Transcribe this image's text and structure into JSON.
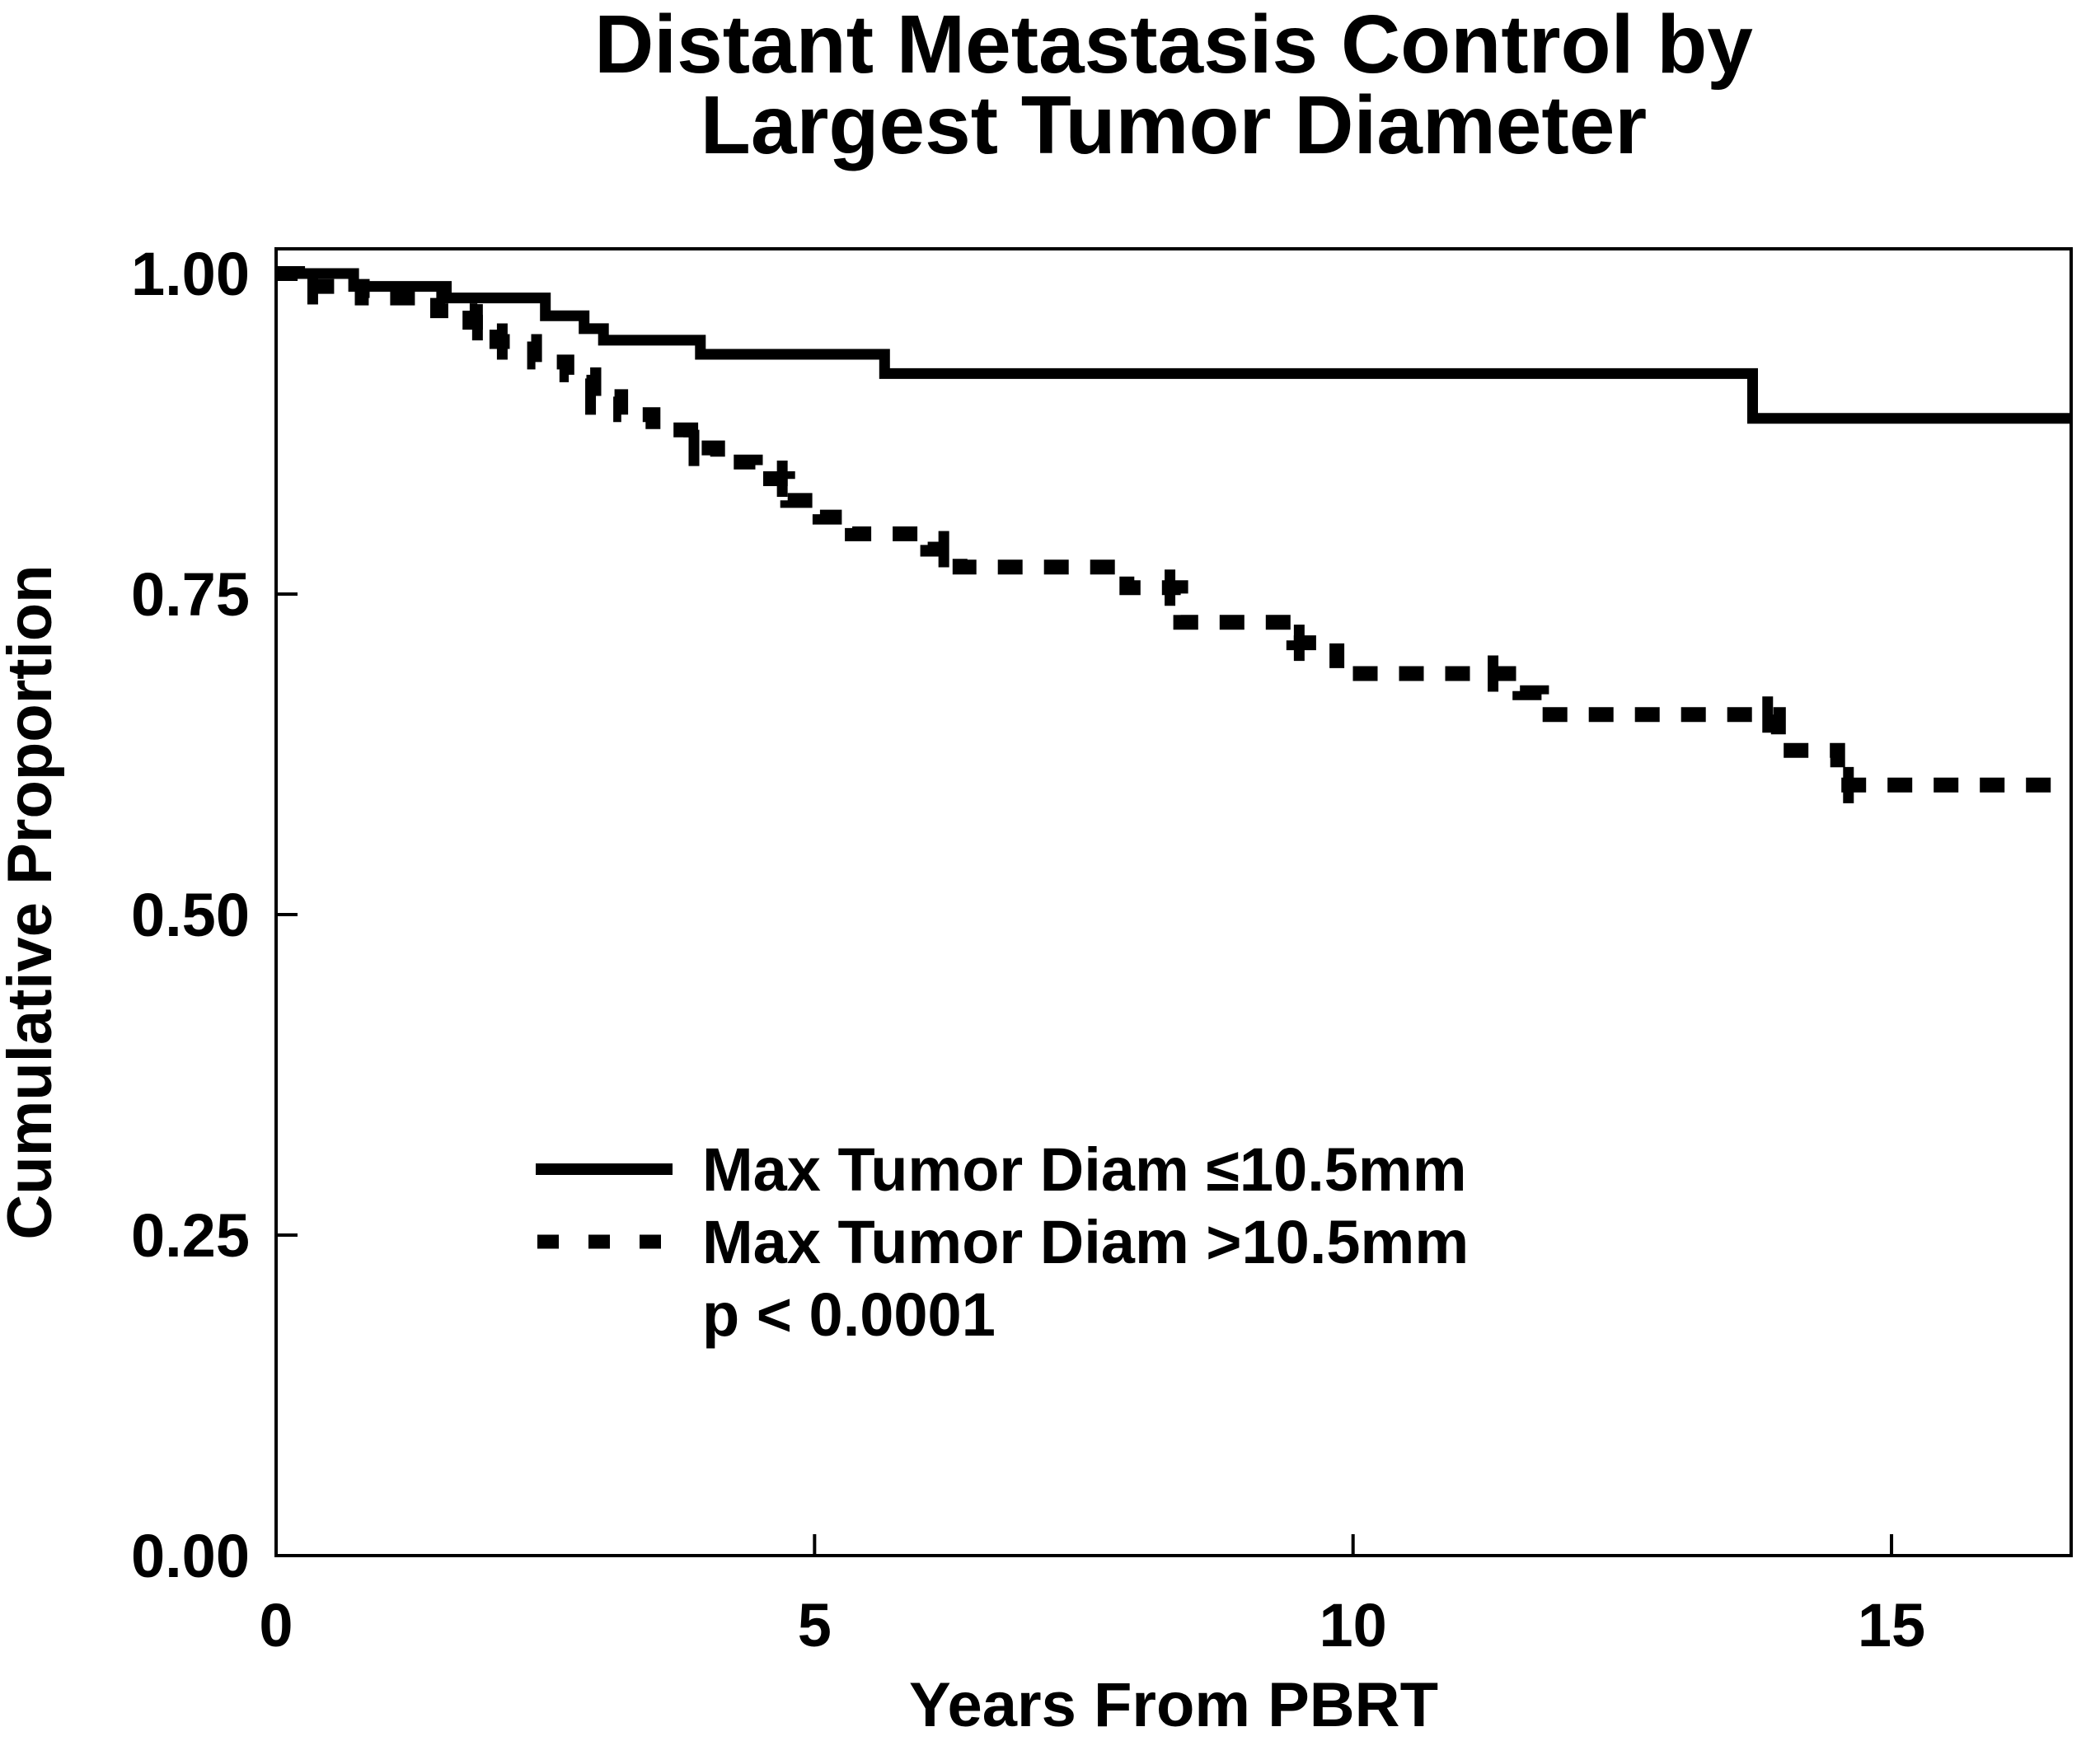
{
  "title": {
    "line1": "Distant Metastasis Control by",
    "line2": "Largest Tumor Diameter"
  },
  "axes": {
    "x": {
      "label": "Years From PBRT"
    },
    "y": {
      "label": "Cumulative Proportion"
    }
  },
  "legend": {
    "items": [
      {
        "label": "Max Tumor Diam ≤10.5mm",
        "style": "solid"
      },
      {
        "label": "Max Tumor Diam >10.5mm",
        "style": "dashed"
      }
    ],
    "p_value": "p < 0.0001"
  },
  "colors": {
    "line": "#000000",
    "background": "#ffffff"
  },
  "chart_data": {
    "type": "line",
    "subtype": "kaplan-meier-step-function",
    "title": "Distant Metastasis Control by Largest Tumor Diameter",
    "xlabel": "Years From PBRT",
    "ylabel": "Cumulative Proportion",
    "xlim": [
      0,
      16.67
    ],
    "ylim": [
      0.0,
      1.0
    ],
    "x_max": 16.67,
    "grid": false,
    "legend_position": "center-left-inside",
    "x_ticks": [
      {
        "value": 0,
        "label": "0"
      },
      {
        "value": 5,
        "label": "5"
      },
      {
        "value": 10,
        "label": "10"
      },
      {
        "value": 15,
        "label": "15"
      }
    ],
    "y_ticks": [
      {
        "value": 1.0,
        "label": "1.00"
      },
      {
        "value": 0.75,
        "label": "0.75"
      },
      {
        "value": 0.5,
        "label": "0.50"
      },
      {
        "value": 0.25,
        "label": "0.25"
      },
      {
        "value": 0.0,
        "label": "0.00"
      }
    ],
    "series": [
      {
        "name": "Max Tumor Diam ≤10.5mm",
        "line_style": "solid",
        "step": true,
        "points": [
          [
            0,
            1.0
          ],
          [
            0.72,
            0.99
          ],
          [
            1.58,
            0.981
          ],
          [
            2.5,
            0.967
          ],
          [
            2.86,
            0.957
          ],
          [
            3.04,
            0.948
          ],
          [
            3.94,
            0.937
          ],
          [
            5.65,
            0.922
          ],
          [
            13.71,
            0.887
          ]
        ],
        "censors": []
      },
      {
        "name": "Max Tumor Diam >10.5mm",
        "line_style": "dashed",
        "step": true,
        "points": [
          [
            0,
            1.0
          ],
          [
            0.2,
            0.99
          ],
          [
            0.8,
            0.981
          ],
          [
            1.5,
            0.971
          ],
          [
            1.8,
            0.962
          ],
          [
            2.05,
            0.947
          ],
          [
            2.4,
            0.931
          ],
          [
            2.7,
            0.921
          ],
          [
            2.95,
            0.904
          ],
          [
            3.2,
            0.89
          ],
          [
            3.5,
            0.878
          ],
          [
            3.85,
            0.864
          ],
          [
            4.1,
            0.853
          ],
          [
            4.45,
            0.84
          ],
          [
            4.75,
            0.823
          ],
          [
            5.05,
            0.81
          ],
          [
            5.35,
            0.797
          ],
          [
            6.05,
            0.785
          ],
          [
            6.35,
            0.771
          ],
          [
            7.9,
            0.755
          ],
          [
            8.4,
            0.728
          ],
          [
            9.45,
            0.712
          ],
          [
            9.85,
            0.688
          ],
          [
            11.55,
            0.673
          ],
          [
            11.75,
            0.656
          ],
          [
            13.95,
            0.628
          ],
          [
            14.5,
            0.601
          ]
        ],
        "censors": [
          [
            0.34,
            0.99
          ],
          [
            1.87,
            0.962
          ],
          [
            2.1,
            0.947
          ],
          [
            2.92,
            0.904
          ],
          [
            3.88,
            0.864
          ],
          [
            4.7,
            0.84
          ],
          [
            6.2,
            0.785
          ],
          [
            8.3,
            0.755
          ],
          [
            9.5,
            0.712
          ],
          [
            11.3,
            0.688
          ],
          [
            13.85,
            0.656
          ],
          [
            14.6,
            0.601
          ]
        ]
      }
    ],
    "annotations": [
      {
        "text": "p < 0.0001"
      }
    ]
  }
}
